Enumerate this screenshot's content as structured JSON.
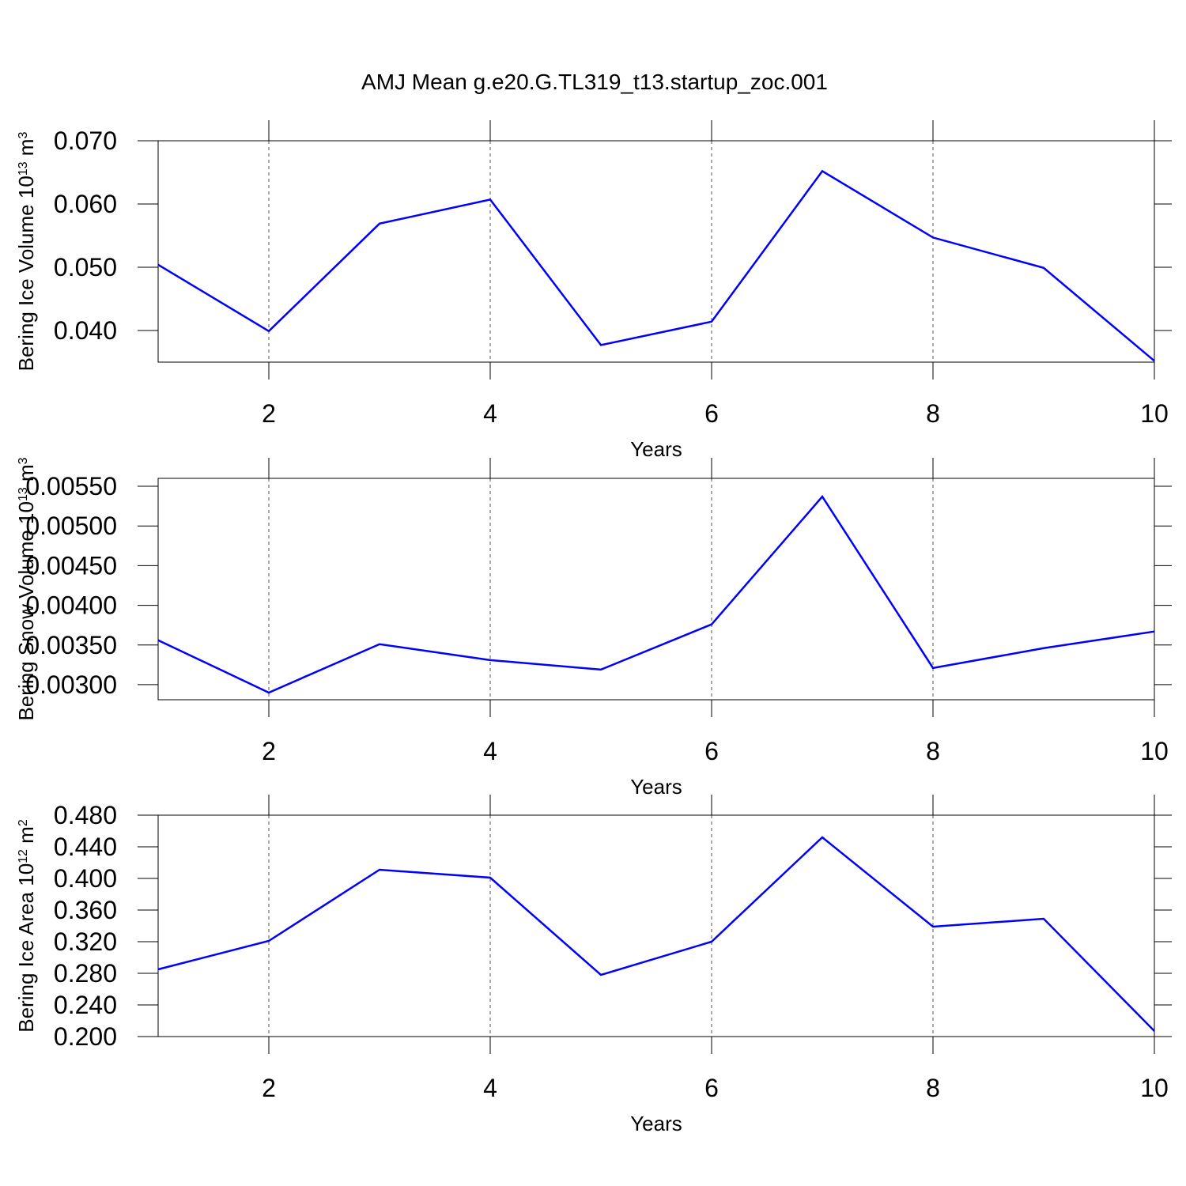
{
  "title": "AMJ Mean g.e20.G.TL319_t13.startup_zoc.001",
  "chart_data": [
    {
      "type": "line",
      "xlabel": "Years",
      "ylabel": [
        "Bering Ice Volume 10",
        "13",
        " m",
        "3"
      ],
      "x": [
        1,
        2,
        3,
        4,
        5,
        6,
        7,
        8,
        9,
        10
      ],
      "series": [
        {
          "color": "#0000ff",
          "values": [
            0.0504,
            0.0399,
            0.0569,
            0.0607,
            0.0377,
            0.0414,
            0.0652,
            0.0547,
            0.0499,
            0.0352
          ]
        }
      ],
      "xlim": [
        1,
        10
      ],
      "xticks": [
        2,
        4,
        6,
        8,
        10
      ],
      "ylim": [
        0.035,
        0.07
      ],
      "yticks": [
        {
          "value": 0.04,
          "label": "0.040"
        },
        {
          "value": 0.05,
          "label": "0.050"
        },
        {
          "value": 0.06,
          "label": "0.060"
        },
        {
          "value": 0.07,
          "label": "0.070"
        }
      ],
      "grid": "x"
    },
    {
      "type": "line",
      "xlabel": "Years",
      "ylabel": [
        "Bering Snow Volume 10",
        "13",
        " m",
        "3"
      ],
      "x": [
        1,
        2,
        3,
        4,
        5,
        6,
        7,
        8,
        9,
        10
      ],
      "series": [
        {
          "color": "#0000ff",
          "values": [
            0.00356,
            0.0029,
            0.00351,
            0.00331,
            0.00319,
            0.00376,
            0.00537,
            0.00321,
            0.00346,
            0.00367
          ]
        }
      ],
      "xlim": [
        1,
        10
      ],
      "xticks": [
        2,
        4,
        6,
        8,
        10
      ],
      "ylim": [
        0.00281,
        0.0056
      ],
      "yticks": [
        {
          "value": 0.003,
          "label": "0.00300"
        },
        {
          "value": 0.0035,
          "label": "0.00350"
        },
        {
          "value": 0.004,
          "label": "0.00400"
        },
        {
          "value": 0.0045,
          "label": "0.00450"
        },
        {
          "value": 0.005,
          "label": "0.00500"
        },
        {
          "value": 0.0055,
          "label": "0.00550"
        }
      ],
      "grid": "x"
    },
    {
      "type": "line",
      "xlabel": "Years",
      "ylabel": [
        "Bering Ice Area 10",
        "12",
        " m",
        "2"
      ],
      "x": [
        1,
        2,
        3,
        4,
        5,
        6,
        7,
        8,
        9,
        10
      ],
      "series": [
        {
          "color": "#0000ff",
          "values": [
            0.285,
            0.321,
            0.411,
            0.401,
            0.278,
            0.32,
            0.452,
            0.339,
            0.349,
            0.207
          ]
        }
      ],
      "xlim": [
        1,
        10
      ],
      "xticks": [
        2,
        4,
        6,
        8,
        10
      ],
      "ylim": [
        0.2,
        0.48
      ],
      "yticks": [
        {
          "value": 0.2,
          "label": "0.200"
        },
        {
          "value": 0.24,
          "label": "0.240"
        },
        {
          "value": 0.28,
          "label": "0.280"
        },
        {
          "value": 0.32,
          "label": "0.320"
        },
        {
          "value": 0.36,
          "label": "0.360"
        },
        {
          "value": 0.4,
          "label": "0.400"
        },
        {
          "value": 0.44,
          "label": "0.440"
        },
        {
          "value": 0.48,
          "label": "0.480"
        }
      ],
      "grid": "x"
    }
  ]
}
